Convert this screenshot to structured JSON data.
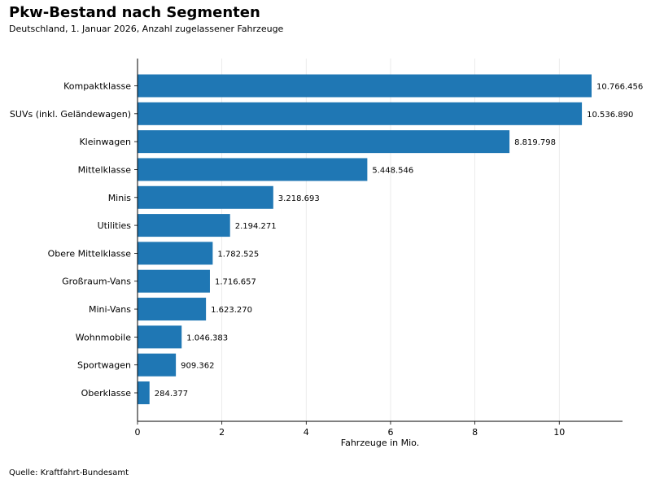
{
  "chart_data": {
    "type": "bar",
    "orientation": "horizontal",
    "title": "Pkw-Bestand nach Segmenten",
    "subtitle": "Deutschland, 1. Januar 2026, Anzahl zugelassener Fahrzeuge",
    "xlabel": "Fahrzeuge in Mio.",
    "ylabel": "",
    "xlim": [
      0,
      11.5
    ],
    "xticks": [
      0,
      2,
      4,
      6,
      8,
      10
    ],
    "grid": "vertical",
    "bar_color": "#1f77b4",
    "categories": [
      "Kompaktklasse",
      "SUVs (inkl. Geländewagen)",
      "Kleinwagen",
      "Mittelklasse",
      "Minis",
      "Utilities",
      "Obere Mittelklasse",
      "Großraum-Vans",
      "Mini-Vans",
      "Wohnmobile",
      "Sportwagen",
      "Oberklasse"
    ],
    "values": [
      10.766456,
      10.53689,
      8.819798,
      5.448546,
      3.218693,
      2.194271,
      1.782525,
      1.716657,
      1.62327,
      1.046383,
      0.909362,
      0.284377
    ],
    "data_labels": [
      "10.766.456",
      "10.536.890",
      "8.819.798",
      "5.448.546",
      "3.218.693",
      "2.194.271",
      "1.782.525",
      "1.716.657",
      "1.623.270",
      "1.046.383",
      "909.362",
      "284.377"
    ]
  },
  "source": "Quelle: Kraftfahrt-Bundesamt"
}
